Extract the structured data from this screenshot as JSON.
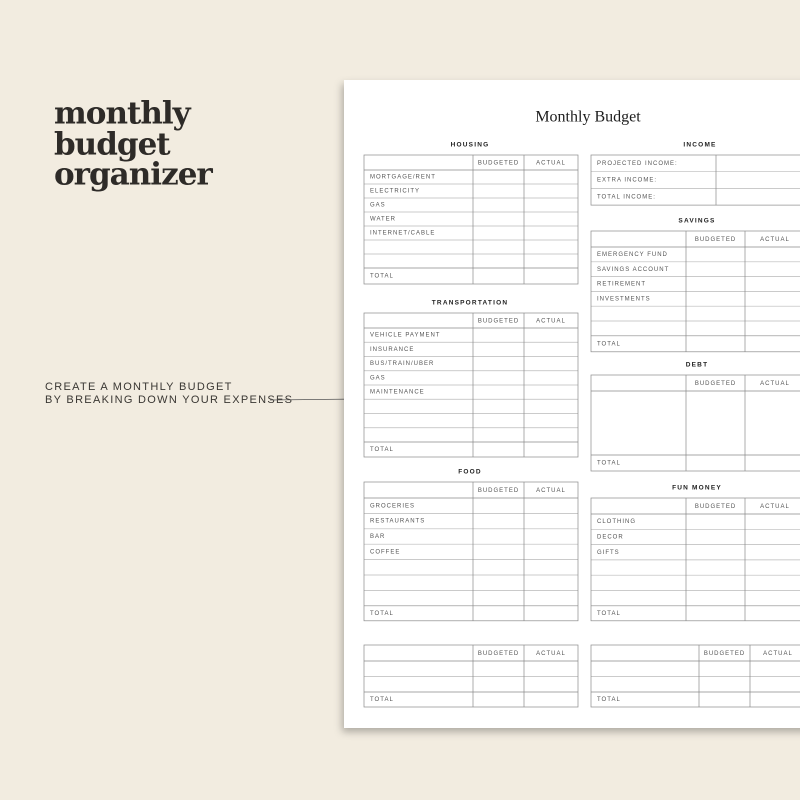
{
  "header": {
    "title": [
      "monthly",
      "budget",
      "organizer"
    ],
    "caption": [
      "CREATE A MONTHLY BUDGET",
      "BY BREAKING DOWN YOUR EXPENSES"
    ]
  },
  "planner": {
    "title": "Monthly Budget",
    "sections": [
      {
        "title": "HOUSING",
        "columns": [
          "BUDGETED",
          "ACTUAL"
        ],
        "rows": [
          "MORTGAGE/RENT",
          "ELECTRICITY",
          "GAS",
          "WATER",
          "INTERNET/CABLE"
        ],
        "total": "TOTAL"
      },
      {
        "title": "TRANSPORTATION",
        "columns": [
          "BUDGETED",
          "ACTUAL"
        ],
        "rows": [
          "VEHICLE PAYMENT",
          "INSURANCE",
          "BUS/TRAIN/UBER",
          "GAS",
          "MAINTENANCE"
        ],
        "total": "TOTAL"
      },
      {
        "title": "FOOD",
        "columns": [
          "BUDGETED",
          "ACTUAL"
        ],
        "rows": [
          "GROCERIES",
          "RESTAURANTS",
          "BAR",
          "COFFEE"
        ],
        "total": "TOTAL"
      },
      {
        "columns": [
          "BUDGETED",
          "ACTUAL"
        ],
        "total": "TOTAL"
      },
      {
        "title": "INCOME",
        "rows": [
          "PROJECTED INCOME:",
          "EXTRA INCOME:",
          "TOTAL INCOME:"
        ]
      },
      {
        "title": "SAVINGS",
        "columns": [
          "BUDGETED",
          "ACTUAL"
        ],
        "rows": [
          "EMERGENCY FUND",
          "SAVINGS ACCOUNT",
          "RETIREMENT",
          "INVESTMENTS"
        ],
        "total": "TOTAL"
      },
      {
        "title": "DEBT",
        "columns": [
          "BUDGETED",
          "ACTUAL"
        ],
        "total": "TOTAL"
      },
      {
        "title": "FUN MONEY",
        "columns": [
          "BUDGETED",
          "ACTUAL"
        ],
        "rows": [
          "CLOTHING",
          "DECOR",
          "GIFTS"
        ],
        "total": "TOTAL"
      },
      {
        "columns": [
          "BUDGETED",
          "ACTUAL"
        ],
        "total": "TOTAL"
      }
    ]
  }
}
